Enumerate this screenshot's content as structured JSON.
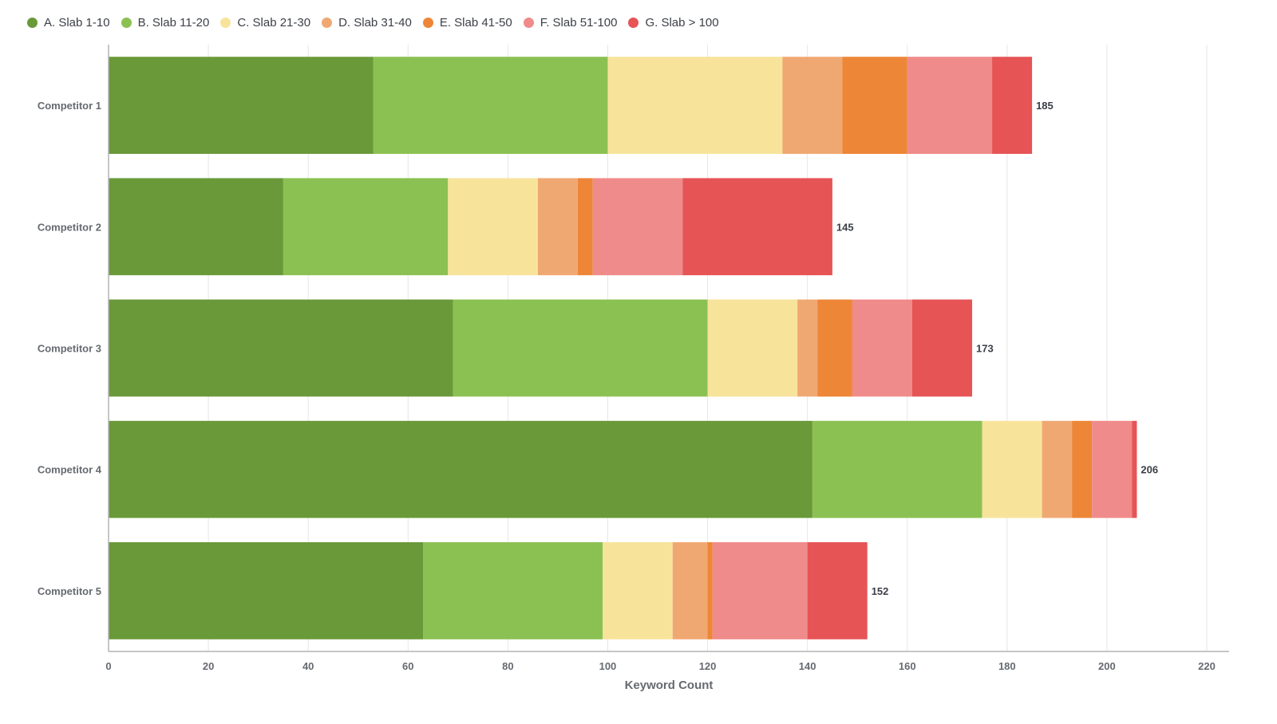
{
  "chart_data": {
    "type": "bar",
    "orientation": "horizontal",
    "stacked": true,
    "categories": [
      "Competitor 1",
      "Competitor 2",
      "Competitor 3",
      "Competitor 4",
      "Competitor 5"
    ],
    "series": [
      {
        "name": "A. Slab 1-10",
        "color": "#6a9939",
        "values": [
          53,
          35,
          69,
          141,
          63
        ]
      },
      {
        "name": "B. Slab 11-20",
        "color": "#8bc152",
        "values": [
          47,
          33,
          51,
          34,
          36
        ]
      },
      {
        "name": "C. Slab 21-30",
        "color": "#f8e39b",
        "values": [
          35,
          18,
          18,
          12,
          14
        ]
      },
      {
        "name": "D. Slab 31-40",
        "color": "#f0a872",
        "values": [
          12,
          8,
          4,
          6,
          7
        ]
      },
      {
        "name": "E. Slab 41-50",
        "color": "#ed8637",
        "values": [
          13,
          3,
          7,
          4,
          1
        ]
      },
      {
        "name": "F. Slab 51-100",
        "color": "#ef8b8a",
        "values": [
          17,
          18,
          12,
          8,
          19
        ]
      },
      {
        "name": "G. Slab > 100",
        "color": "#e65456",
        "values": [
          8,
          30,
          12,
          1,
          12
        ]
      }
    ],
    "totals": [
      185,
      145,
      173,
      206,
      152
    ],
    "xlabel": "Keyword Count",
    "ylabel": "",
    "xlim": [
      0,
      220
    ],
    "xticks": [
      0,
      20,
      40,
      60,
      80,
      100,
      120,
      140,
      160,
      180,
      200,
      220
    ],
    "grid": true,
    "legend_position": "top-left"
  }
}
